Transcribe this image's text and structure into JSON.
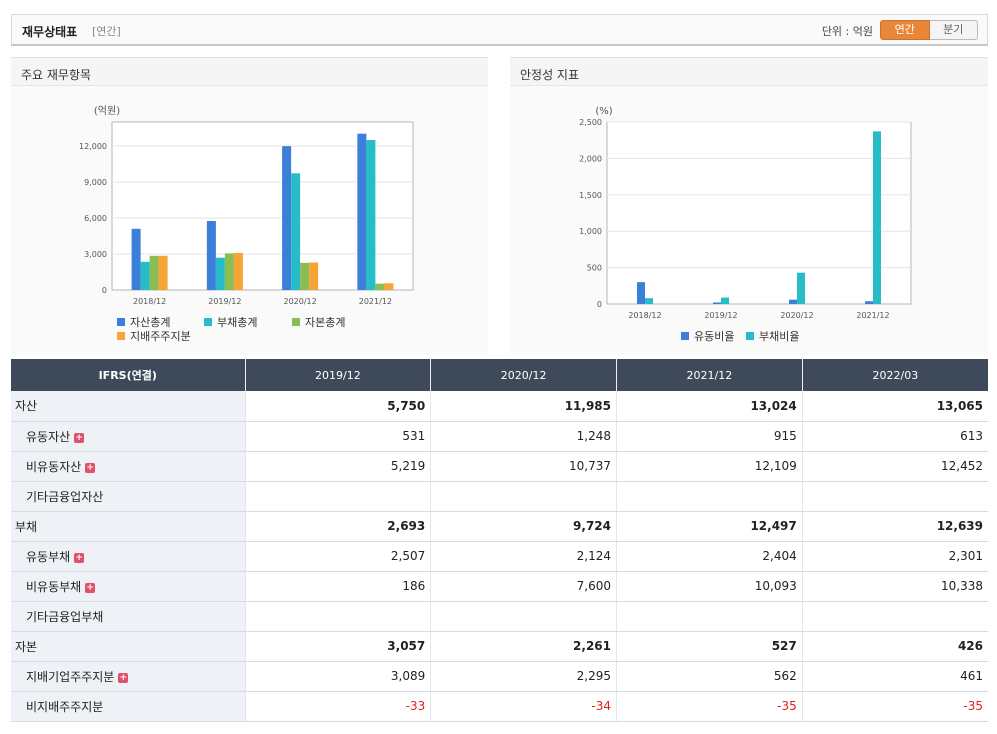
{
  "header": {
    "title": "재무상태표",
    "subtitle": "[연간]",
    "unit_label": "단위 : 억원",
    "toggle_annual": "연간",
    "toggle_quarter": "분기"
  },
  "panels": {
    "left_title": "주요 재무항목",
    "right_title": "안정성 지표"
  },
  "colors": {
    "blue": "#3b7fd9",
    "teal": "#26bcc8",
    "green": "#8cbd55",
    "orange": "#f5a536",
    "accent": "#e8873a",
    "header_dark": "#3e4a5a",
    "negative": "#e02020"
  },
  "chart_data": [
    {
      "type": "bar",
      "unit": "(억원)",
      "categories": [
        "2018/12",
        "2019/12",
        "2020/12",
        "2021/12"
      ],
      "ylim": [
        0,
        14000
      ],
      "yticks": [
        0,
        3000,
        6000,
        9000,
        12000
      ],
      "ytick_labels": [
        "0",
        "3,000",
        "6,000",
        "9,000",
        "12,000"
      ],
      "series": [
        {
          "name": "자산총계",
          "color": "#3b7fd9",
          "values": [
            5100,
            5750,
            11985,
            13024
          ]
        },
        {
          "name": "부채총계",
          "color": "#26bcc8",
          "values": [
            2350,
            2693,
            9724,
            12497
          ]
        },
        {
          "name": "자본총계",
          "color": "#8cbd55",
          "values": [
            2850,
            3057,
            2261,
            527
          ]
        },
        {
          "name": "지배주주지분",
          "color": "#f5a536",
          "values": [
            2850,
            3089,
            2295,
            562
          ]
        }
      ],
      "legend_position": "bottom-left",
      "grid": true
    },
    {
      "type": "bar",
      "unit": "(%)",
      "categories": [
        "2018/12",
        "2019/12",
        "2020/12",
        "2021/12"
      ],
      "ylim": [
        0,
        2500
      ],
      "yticks": [
        0,
        500,
        1000,
        1500,
        2000,
        2500
      ],
      "ytick_labels": [
        "0",
        "500",
        "1,000",
        "1,500",
        "2,000",
        "2,500"
      ],
      "series": [
        {
          "name": "유동비율",
          "color": "#3b7fd9",
          "values": [
            300,
            21,
            59,
            38
          ]
        },
        {
          "name": "부채비율",
          "color": "#26bcc8",
          "values": [
            80,
            88,
            430,
            2371
          ]
        }
      ],
      "legend_position": "bottom-center",
      "grid": true
    }
  ],
  "table": {
    "header_first": "IFRS(연결)",
    "columns": [
      "2019/12",
      "2020/12",
      "2021/12",
      "2022/03"
    ],
    "rows": [
      {
        "label": "자산",
        "level": 0,
        "expand": false,
        "values": [
          "5,750",
          "11,985",
          "13,024",
          "13,065"
        ]
      },
      {
        "label": "유동자산",
        "level": 1,
        "expand": true,
        "values": [
          "531",
          "1,248",
          "915",
          "613"
        ]
      },
      {
        "label": "비유동자산",
        "level": 1,
        "expand": true,
        "values": [
          "5,219",
          "10,737",
          "12,109",
          "12,452"
        ]
      },
      {
        "label": "기타금융업자산",
        "level": 1,
        "expand": false,
        "values": [
          "",
          "",
          "",
          ""
        ]
      },
      {
        "label": "부채",
        "level": 0,
        "expand": false,
        "values": [
          "2,693",
          "9,724",
          "12,497",
          "12,639"
        ]
      },
      {
        "label": "유동부채",
        "level": 1,
        "expand": true,
        "values": [
          "2,507",
          "2,124",
          "2,404",
          "2,301"
        ]
      },
      {
        "label": "비유동부채",
        "level": 1,
        "expand": true,
        "values": [
          "186",
          "7,600",
          "10,093",
          "10,338"
        ]
      },
      {
        "label": "기타금융업부채",
        "level": 1,
        "expand": false,
        "values": [
          "",
          "",
          "",
          ""
        ]
      },
      {
        "label": "자본",
        "level": 0,
        "expand": false,
        "values": [
          "3,057",
          "2,261",
          "527",
          "426"
        ]
      },
      {
        "label": "지배기업주주지분",
        "level": 1,
        "expand": true,
        "values": [
          "3,089",
          "2,295",
          "562",
          "461"
        ]
      },
      {
        "label": "비지배주주지분",
        "level": 1,
        "expand": false,
        "values": [
          "-33",
          "-34",
          "-35",
          "-35"
        ]
      }
    ]
  }
}
